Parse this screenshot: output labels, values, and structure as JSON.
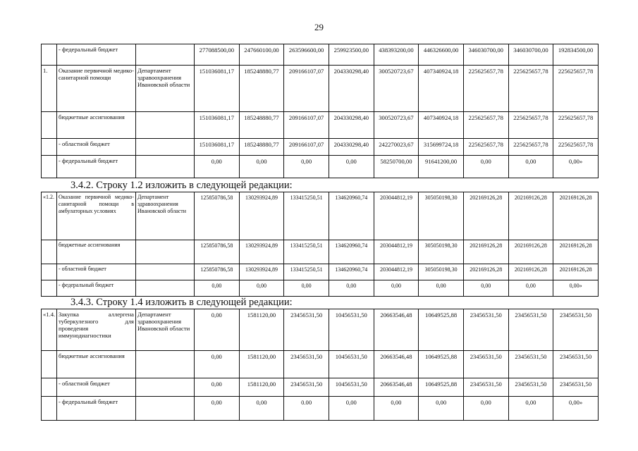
{
  "page_number": "29",
  "table1": {
    "rows": [
      {
        "num": "",
        "name": "- федеральный бюджет",
        "dept": "",
        "values": [
          "277088500,00",
          "247660100,00",
          "263596600,00",
          "259923500,00",
          "438393200,00",
          "446326600,00",
          "346030700,00",
          "346030700,00",
          "192834500,00"
        ]
      },
      {
        "num": "1.",
        "name": "Оказание первичной медико-санитарной помощи",
        "dept": "Департамент здравоохранения Ивановской области",
        "values": [
          "151036081,17",
          "185248880,77",
          "209166107,07",
          "204330298,40",
          "300520723,67",
          "407340924,18",
          "225625657,78",
          "225625657,78",
          "225625657,78"
        ]
      },
      {
        "num": "",
        "name": "бюджетные ассигнования",
        "dept": "",
        "values": [
          "151036081,17",
          "185248880,77",
          "209166107,07",
          "204330298,40",
          "300520723,67",
          "407340924,18",
          "225625657,78",
          "225625657,78",
          "225625657,78"
        ]
      },
      {
        "num": "",
        "name": "- областной бюджет",
        "dept": "",
        "values": [
          "151036081,17",
          "185248880,77",
          "209166107,07",
          "204330298,40",
          "242270023,67",
          "315699724,18",
          "225625657,78",
          "225625657,78",
          "225625657,78"
        ]
      },
      {
        "num": "",
        "name": "- федеральный бюджет",
        "dept": "",
        "values": [
          "0,00",
          "0,00",
          "0,00",
          "0,00",
          "58250700,00",
          "91641200,00",
          "0,00",
          "0,00",
          "0,00»"
        ]
      }
    ]
  },
  "heading2": "3.4.2. Строку 1.2 изложить в следующей редакции:",
  "table2": {
    "rows": [
      {
        "num": "«1.2.",
        "name": "Оказание первичной медико-санитарной помощи в амбулаторных условиях",
        "dept": "Департамент здравоохранения Ивановской области",
        "values": [
          "125850786,58",
          "130293924,89",
          "133415250,51",
          "134620960,74",
          "203044812,19",
          "305050198,30",
          "202169126,28",
          "202169126,28",
          "202169126,28"
        ]
      },
      {
        "num": "",
        "name": "бюджетные ассигнования",
        "dept": "",
        "values": [
          "125850786,58",
          "130293924,89",
          "133415250,51",
          "134620960,74",
          "203044812,19",
          "305050198,30",
          "202169126,28",
          "202169126,28",
          "202169126,28"
        ]
      },
      {
        "num": "",
        "name": "- областной бюджет",
        "dept": "",
        "values": [
          "125850786,58",
          "130293924,89",
          "133415250,51",
          "134620960,74",
          "203044812,19",
          "305050198,30",
          "202169126,28",
          "202169126,28",
          "202169126,28"
        ]
      },
      {
        "num": "",
        "name": "- федеральный бюджет",
        "dept": "",
        "values": [
          "0,00",
          "0,00",
          "0,00",
          "0,00",
          "0,00",
          "0,00",
          "0,00",
          "0,00",
          "0,00»"
        ]
      }
    ]
  },
  "heading3": "3.4.3. Строку 1.4 изложить в следующей редакции:",
  "table3": {
    "rows": [
      {
        "num": "«1.4.",
        "name": "Закупка аллергена туберкулезного для проведения иммунодиагностики",
        "dept": "Департамент здравоохранения Ивановской области",
        "values": [
          "0,00",
          "1581120,00",
          "23456531,50",
          "10456531,50",
          "20663546,48",
          "10649525,88",
          "23456531,50",
          "23456531,50",
          "23456531,50"
        ]
      },
      {
        "num": "",
        "name": "бюджетные ассигнования",
        "dept": "",
        "values": [
          "0,00",
          "1581120,00",
          "23456531,50",
          "10456531,50",
          "20663546,48",
          "10649525,88",
          "23456531,50",
          "23456531,50",
          "23456531,50"
        ]
      },
      {
        "num": "",
        "name": "- областной бюджет",
        "dept": "",
        "values": [
          "0,00",
          "1581120,00",
          "23456531,50",
          "10456531,50",
          "20663546,48",
          "10649525,88",
          "23456531,50",
          "23456531,50",
          "23456531,50"
        ]
      },
      {
        "num": "",
        "name": "- федеральный бюджет",
        "dept": "",
        "values": [
          "0,00",
          "0,00",
          "0.00",
          "0,00",
          "0,00",
          "0,00",
          "0,00",
          "0,00",
          "0,00»"
        ]
      }
    ]
  }
}
